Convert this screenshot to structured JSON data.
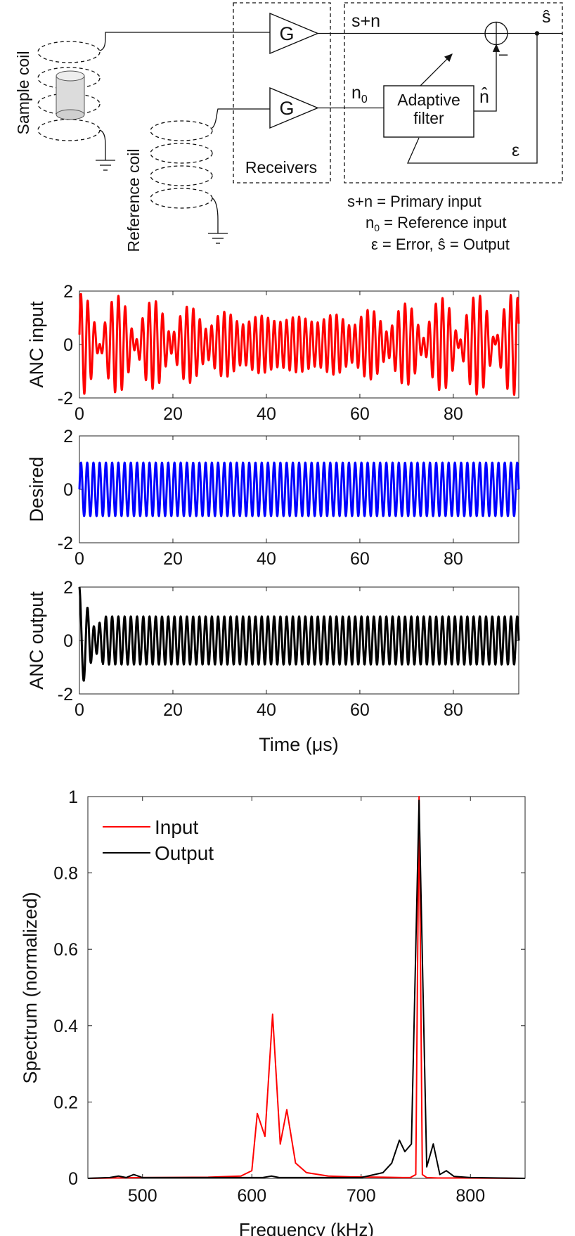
{
  "diagram": {
    "sample_coil_label": "Sample coil",
    "reference_coil_label": "Reference coil",
    "gain_label": "G",
    "receivers_label": "Receivers",
    "primary_signal": "s+n",
    "reference_signal": "n",
    "reference_signal_sub": "0",
    "adaptive_filter_line1": "Adaptive",
    "adaptive_filter_line2": "filter",
    "noise_estimate": "n̂",
    "output_symbol": "ŝ",
    "minus_sign": "–",
    "error_symbol": "ε",
    "legend_line1": "s+n = Primary input",
    "legend_line2_a": "n",
    "legend_line2_sub": "0",
    "legend_line2_b": " = Reference input",
    "legend_line3": "ε = Error, ŝ = Output"
  },
  "chart_data": [
    {
      "type": "line",
      "ylabel": "ANC input",
      "xlim": [
        0,
        94
      ],
      "ylim": [
        -2,
        2
      ],
      "xticks": [
        0,
        20,
        40,
        60,
        80
      ],
      "yticks": [
        -2,
        0,
        2
      ],
      "series": [
        {
          "color": "#ff0000",
          "model": "sum of 0.75 MHz signal (amp 1) and 0.62 MHz noise (amp 1) with slowly varying envelope",
          "peak_abs": 1.9
        }
      ]
    },
    {
      "type": "line",
      "ylabel": "Desired",
      "xlim": [
        0,
        94
      ],
      "ylim": [
        -2,
        2
      ],
      "xticks": [
        0,
        20,
        40,
        60,
        80
      ],
      "yticks": [
        -2,
        0,
        2
      ],
      "series": [
        {
          "color": "#0000ff",
          "model": "sinusoid, 0.75 MHz, amplitude 1"
        }
      ]
    },
    {
      "type": "line",
      "ylabel": "ANC output",
      "xlabel": "Time (μs)",
      "xlim": [
        0,
        94
      ],
      "ylim": [
        -2,
        2
      ],
      "xticks": [
        0,
        20,
        40,
        60,
        80
      ],
      "yticks": [
        -2,
        0,
        2
      ],
      "series": [
        {
          "color": "#000000",
          "model": "initial transient to 2 and -1.7 in first 5 μs, then sinusoid 0.75 MHz amplitude ≈0.9"
        }
      ]
    },
    {
      "type": "line",
      "xlabel": "Frequency (kHz)",
      "ylabel": "Spectrum (normalized)",
      "xlim": [
        450,
        850
      ],
      "ylim": [
        0,
        1
      ],
      "xticks": [
        500,
        600,
        700,
        800
      ],
      "yticks": [
        0,
        0.2,
        0.4,
        0.6,
        0.8,
        1
      ],
      "legend_position": "top-left",
      "series": [
        {
          "name": "Input",
          "color": "#ff0000",
          "x": [
            450,
            500,
            560,
            590,
            600,
            605,
            612,
            619,
            626,
            632,
            640,
            650,
            670,
            690,
            720,
            738,
            745,
            750,
            753,
            756,
            760,
            770,
            790,
            850
          ],
          "y": [
            0.0,
            0.002,
            0.003,
            0.006,
            0.02,
            0.17,
            0.11,
            0.43,
            0.09,
            0.18,
            0.04,
            0.015,
            0.006,
            0.004,
            0.003,
            0.002,
            0.002,
            0.01,
            1.0,
            0.01,
            0.002,
            0.001,
            0.001,
            0.0
          ]
        },
        {
          "name": "Output",
          "color": "#000000",
          "x": [
            450,
            470,
            478,
            485,
            492,
            500,
            520,
            560,
            590,
            610,
            618,
            625,
            640,
            680,
            700,
            720,
            728,
            735,
            740,
            746,
            753,
            760,
            766,
            772,
            778,
            785,
            800,
            850
          ],
          "y": [
            0.0,
            0.002,
            0.006,
            0.002,
            0.01,
            0.002,
            0.002,
            0.002,
            0.002,
            0.002,
            0.006,
            0.002,
            0.002,
            0.002,
            0.002,
            0.015,
            0.04,
            0.1,
            0.07,
            0.09,
            0.99,
            0.03,
            0.09,
            0.01,
            0.02,
            0.005,
            0.002,
            0.0
          ]
        }
      ]
    }
  ]
}
